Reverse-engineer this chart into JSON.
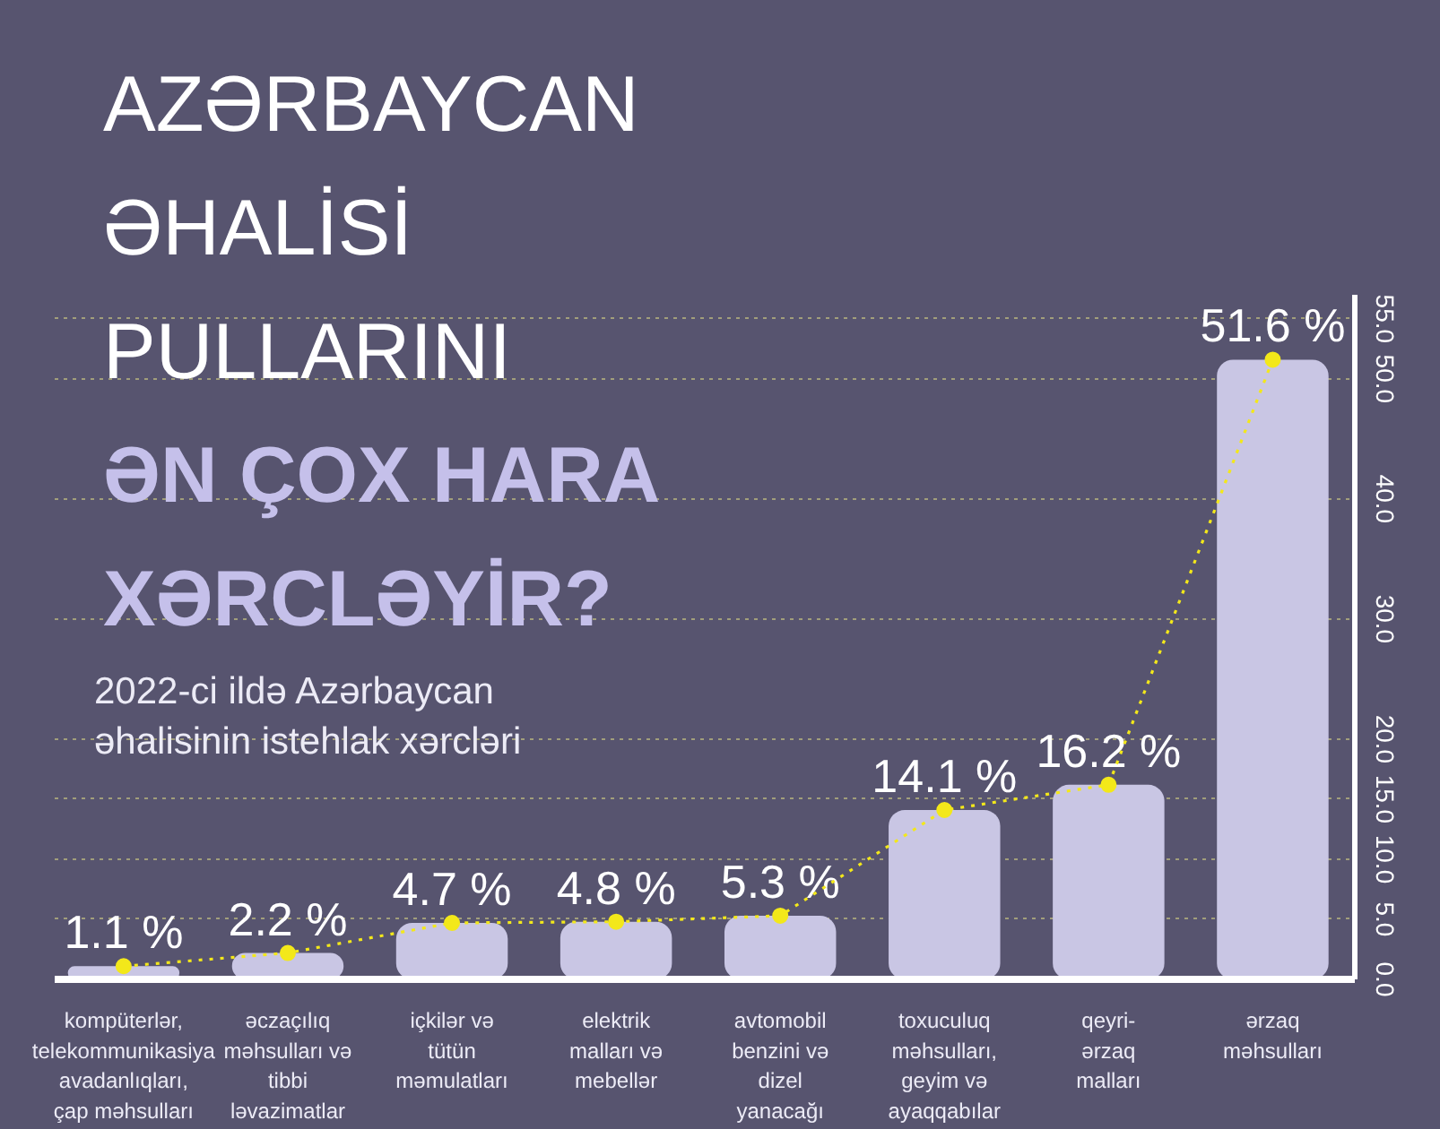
{
  "chart_data": {
    "type": "bar",
    "title": "AZƏRBAYCAN\nƏHALİSİ\nPULLARINI\nƏN ÇOX HARA\nXƏRCLƏYİR?",
    "subtitle": "2022-ci ildə Azərbaycan\nəhalisinin istehlak xərcləri",
    "categories": [
      "kompüterlər,\ntelekommunikasiya\navadanlıqları,\nçap məhsulları",
      "əczaçılıq\nməhsulları və\ntibbi\nləvazimatlar",
      "içkilər və\ntütün\nməmulatları",
      "elektrik\nmalları və\nmebellər",
      "avtomobil\nbenzini və\ndizel\nyanacağı",
      "toxuculuq\nməhsulları,\ngeyim və\nayaqqabılar",
      "qeyri-\nərzaq\nmalları",
      "ərzaq\nməhsulları"
    ],
    "series": [
      {
        "color": "#c9c6e4",
        "values": [
          1.1,
          2.2,
          4.7,
          4.8,
          5.3,
          14.1,
          16.2,
          51.6
        ],
        "value_labels": [
          "1.1 %",
          "2.2 %",
          "4.7 %",
          "4.8 %",
          "5.3 %",
          "14.1 %",
          "16.2 %",
          "51.6 %"
        ]
      },
      {
        "type": "line",
        "color": "#f3e81a",
        "values": [
          1.1,
          2.2,
          4.7,
          4.8,
          5.3,
          14.1,
          16.2,
          51.6
        ],
        "marker": "circle",
        "line_style": "dotted"
      }
    ],
    "ylim": [
      0,
      57
    ],
    "yticks": [
      {
        "value": 0,
        "label": "0.0"
      },
      {
        "value": 5,
        "label": "5.0"
      },
      {
        "value": 10,
        "label": "10.0"
      },
      {
        "value": 15,
        "label": "15.0"
      },
      {
        "value": 20,
        "label": "20.0"
      },
      {
        "value": 30,
        "label": "30.0"
      },
      {
        "value": 40,
        "label": "40.0"
      },
      {
        "value": 50,
        "label": "50.0"
      },
      {
        "value": 55,
        "label": "55.0"
      }
    ],
    "grid": "y"
  }
}
